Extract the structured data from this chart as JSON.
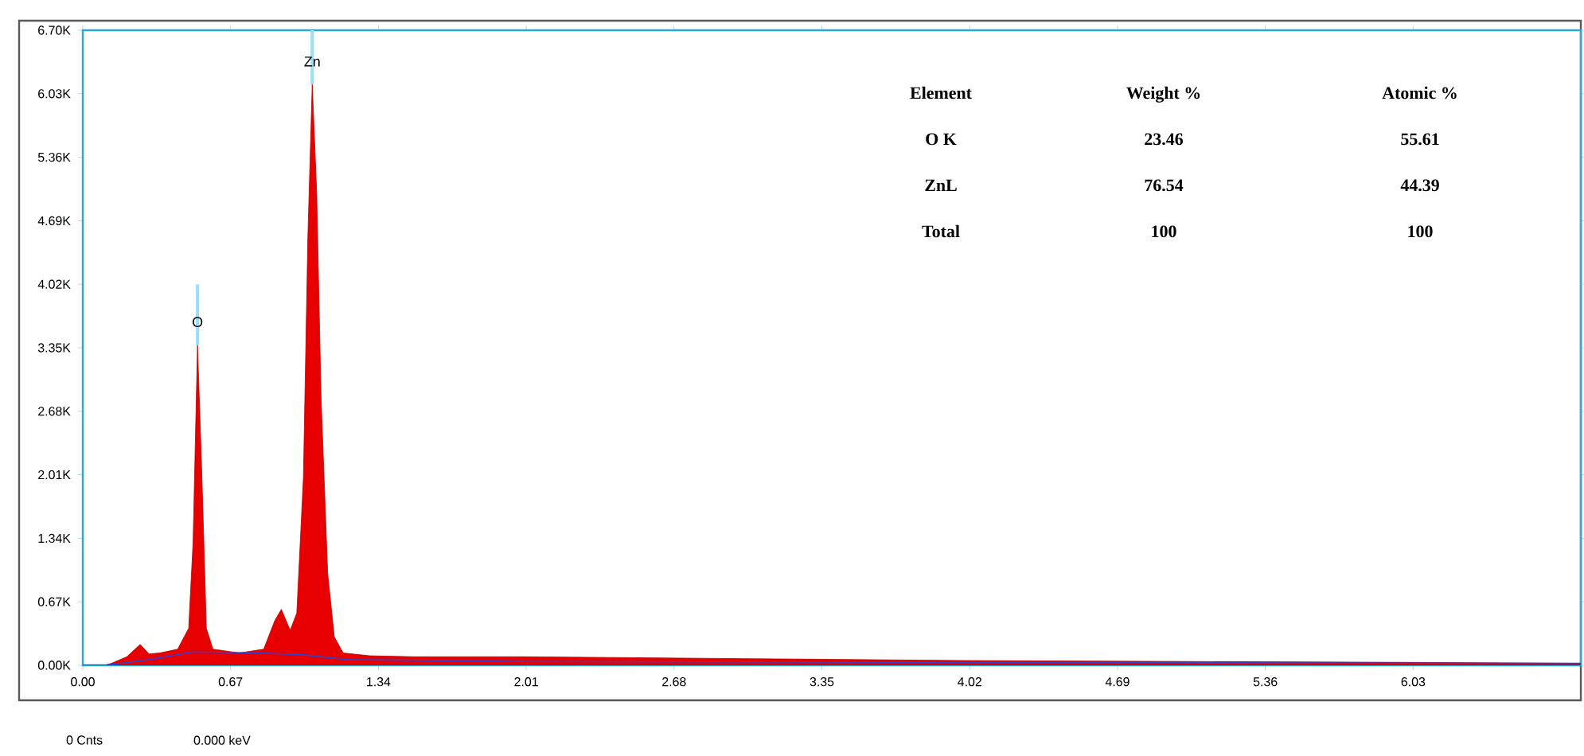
{
  "chart_data": {
    "type": "area",
    "series": [
      {
        "color": "#e80000",
        "x": [
          0.0,
          0.1,
          0.13,
          0.2,
          0.26,
          0.3,
          0.35,
          0.43,
          0.48,
          0.5,
          0.52,
          0.54,
          0.56,
          0.59,
          0.65,
          0.71,
          0.82,
          0.87,
          0.9,
          0.94,
          0.97,
          1.0,
          1.02,
          1.04,
          1.06,
          1.08,
          1.11,
          1.14,
          1.18,
          1.3,
          1.5,
          2.0,
          2.5,
          3.0,
          4.0,
          5.0,
          6.1,
          6.79
        ],
        "values": [
          0,
          0,
          20,
          90,
          220,
          120,
          130,
          170,
          390,
          1300,
          3380,
          1980,
          390,
          170,
          150,
          130,
          170,
          470,
          590,
          370,
          550,
          1980,
          4500,
          6130,
          5000,
          2820,
          970,
          300,
          130,
          100,
          90,
          90,
          80,
          70,
          50,
          40,
          30,
          20
        ]
      },
      {
        "type": "line",
        "color": "#3040d0",
        "x": [
          0.1,
          0.3,
          0.5,
          0.8,
          1.0,
          1.2,
          2.0,
          4.0,
          6.79
        ],
        "values": [
          0,
          60,
          140,
          130,
          110,
          60,
          40,
          30,
          20
        ]
      }
    ],
    "xlim": [
      0,
      6.79
    ],
    "ylim": [
      0,
      6700
    ],
    "xticks": [
      {
        "value": 0,
        "label": "0.00"
      },
      {
        "value": 0.67,
        "label": "0.67"
      },
      {
        "value": 1.34,
        "label": "1.34"
      },
      {
        "value": 2.01,
        "label": "2.01"
      },
      {
        "value": 2.68,
        "label": "2.68"
      },
      {
        "value": 3.35,
        "label": "3.35"
      },
      {
        "value": 4.02,
        "label": "4.02"
      },
      {
        "value": 4.69,
        "label": "4.69"
      },
      {
        "value": 5.36,
        "label": "5.36"
      },
      {
        "value": 6.03,
        "label": "6.03"
      }
    ],
    "yticks": [
      {
        "value": 0,
        "label": "0.00K"
      },
      {
        "value": 670,
        "label": "0.67K"
      },
      {
        "value": 1340,
        "label": "1.34K"
      },
      {
        "value": 2010,
        "label": "2.01K"
      },
      {
        "value": 2680,
        "label": "2.68K"
      },
      {
        "value": 3350,
        "label": "3.35K"
      },
      {
        "value": 4020,
        "label": "4.02K"
      },
      {
        "value": 4690,
        "label": "4.69K"
      },
      {
        "value": 5360,
        "label": "5.36K"
      },
      {
        "value": 6030,
        "label": "6.03K"
      },
      {
        "value": 6700,
        "label": "6.70K"
      }
    ],
    "annotations": [
      {
        "text": "O",
        "x": 0.52,
        "y": 3380
      },
      {
        "text": "Zn",
        "x": 1.04,
        "y": 6130
      },
      "Element",
      "Weight %",
      "Atomic %",
      "O K",
      "23.46",
      "55.61",
      "ZnL",
      "76.54",
      "44.39",
      "Total",
      "100",
      "100",
      "0 Cnts",
      "0.000 keV"
    ]
  }
}
